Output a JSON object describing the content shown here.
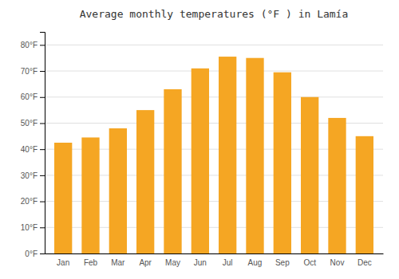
{
  "chart_data": {
    "type": "bar",
    "title": "Average monthly temperatures (°F ) in Lamía",
    "categories": [
      "Jan",
      "Feb",
      "Mar",
      "Apr",
      "May",
      "Jun",
      "Jul",
      "Aug",
      "Sep",
      "Oct",
      "Nov",
      "Dec"
    ],
    "values": [
      42.5,
      44.5,
      48.0,
      55.0,
      63.0,
      71.0,
      75.5,
      75.0,
      69.5,
      60.0,
      52.0,
      45.0
    ],
    "color": "#F5A623",
    "ylim": [
      0,
      85
    ],
    "yticks": [
      {
        "value": 0,
        "label": "0°F"
      },
      {
        "value": 10,
        "label": "10°F"
      },
      {
        "value": 20,
        "label": "20°F"
      },
      {
        "value": 30,
        "label": "30°F"
      },
      {
        "value": 40,
        "label": "40°F"
      },
      {
        "value": 50,
        "label": "50°F"
      },
      {
        "value": 60,
        "label": "60°F"
      },
      {
        "value": 70,
        "label": "70°F"
      },
      {
        "value": 80,
        "label": "80°F"
      }
    ],
    "grid": true
  }
}
